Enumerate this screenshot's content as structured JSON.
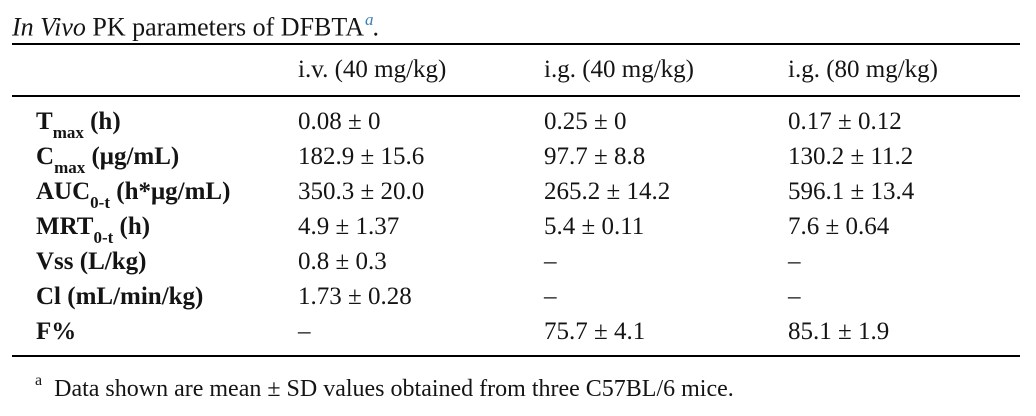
{
  "accent_color": "#3b7db8",
  "caption": {
    "italic_lead": "In Vivo",
    "rest": " PK parameters of DFBTA",
    "footnote_marker": "a",
    "period": "."
  },
  "table": {
    "col_headers": {
      "iv40": "i.v. (40 mg/kg)",
      "ig40": "i.g. (40 mg/kg)",
      "ig80": "i.g. (80 mg/kg)"
    },
    "rows": [
      {
        "base": "T",
        "sub": "max",
        "unit": " (h)",
        "values": [
          "0.08 ± 0",
          "0.25 ± 0",
          "0.17 ± 0.12"
        ]
      },
      {
        "base": "C",
        "sub": "max",
        "unit": " (μg/mL)",
        "values": [
          "182.9 ± 15.6",
          "97.7 ± 8.8",
          "130.2 ± 11.2"
        ]
      },
      {
        "base": "AUC",
        "sub": "0-t",
        "unit": " (h*μg/mL)",
        "values": [
          "350.3 ± 20.0",
          "265.2 ± 14.2",
          "596.1 ± 13.4"
        ]
      },
      {
        "base": "MRT",
        "sub": "0-t",
        "unit": " (h)",
        "values": [
          "4.9 ± 1.37",
          "5.4 ± 0.11",
          "7.6 ± 0.64"
        ]
      },
      {
        "base": "Vss",
        "sub": "",
        "unit": " (L/kg)",
        "values": [
          "0.8 ± 0.3",
          "–",
          "–"
        ]
      },
      {
        "base": "Cl",
        "sub": "",
        "unit": " (mL/min/kg)",
        "values": [
          "1.73 ± 0.28",
          "–",
          "–"
        ]
      },
      {
        "base": "F%",
        "sub": "",
        "unit": "",
        "values": [
          "–",
          "75.7 ± 4.1",
          "85.1 ± 1.9"
        ]
      }
    ]
  },
  "footnote": {
    "marker": "a",
    "text": "Data shown are mean ± SD values obtained from three C57BL/6 mice."
  }
}
